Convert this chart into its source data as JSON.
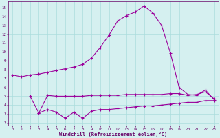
{
  "x_top": [
    0,
    1,
    2,
    3,
    4,
    5,
    6,
    7,
    8,
    9,
    10,
    11,
    12,
    13,
    14,
    15,
    16,
    17,
    18,
    19,
    20,
    21,
    22,
    23
  ],
  "y_top": [
    7.4,
    7.2,
    7.4,
    7.5,
    7.7,
    7.9,
    8.1,
    8.3,
    8.6,
    9.3,
    10.5,
    11.9,
    13.5,
    14.1,
    14.5,
    15.2,
    14.4,
    13.0,
    9.9,
    6.0,
    5.2,
    5.1,
    5.7,
    4.6
  ],
  "x_mid": [
    2,
    3,
    4,
    5,
    6,
    7,
    8,
    9,
    10,
    11,
    12,
    13,
    14,
    15,
    16,
    17,
    18,
    19,
    20,
    21,
    22,
    23
  ],
  "y_mid": [
    5.0,
    3.1,
    5.1,
    5.0,
    5.0,
    5.0,
    5.0,
    5.1,
    5.1,
    5.1,
    5.1,
    5.2,
    5.2,
    5.2,
    5.2,
    5.2,
    5.3,
    5.3,
    5.1,
    5.2,
    5.5,
    4.7
  ],
  "x_bot": [
    3,
    4,
    5,
    6,
    7,
    8,
    9,
    10,
    11,
    12,
    13,
    14,
    15,
    16,
    17,
    18,
    19,
    20,
    21,
    22,
    23
  ],
  "y_bot": [
    3.1,
    3.5,
    3.2,
    2.5,
    3.2,
    2.5,
    3.3,
    3.5,
    3.5,
    3.6,
    3.7,
    3.8,
    3.9,
    3.9,
    4.0,
    4.1,
    4.2,
    4.3,
    4.3,
    4.5,
    4.5
  ],
  "line_color": "#9b009b",
  "bg_color": "#d5f0f0",
  "grid_color": "#aadddd",
  "xlabel": "Windchill (Refroidissement éolien,°C)",
  "ylim": [
    1.7,
    15.7
  ],
  "xlim": [
    -0.5,
    23.5
  ],
  "yticks": [
    2,
    3,
    4,
    5,
    6,
    7,
    8,
    9,
    10,
    11,
    12,
    13,
    14,
    15
  ],
  "xticks": [
    0,
    1,
    2,
    3,
    4,
    5,
    6,
    7,
    8,
    9,
    10,
    11,
    12,
    13,
    14,
    15,
    16,
    17,
    18,
    19,
    20,
    21,
    22,
    23
  ],
  "marker": "+",
  "markersize": 3.5,
  "linewidth": 0.8
}
